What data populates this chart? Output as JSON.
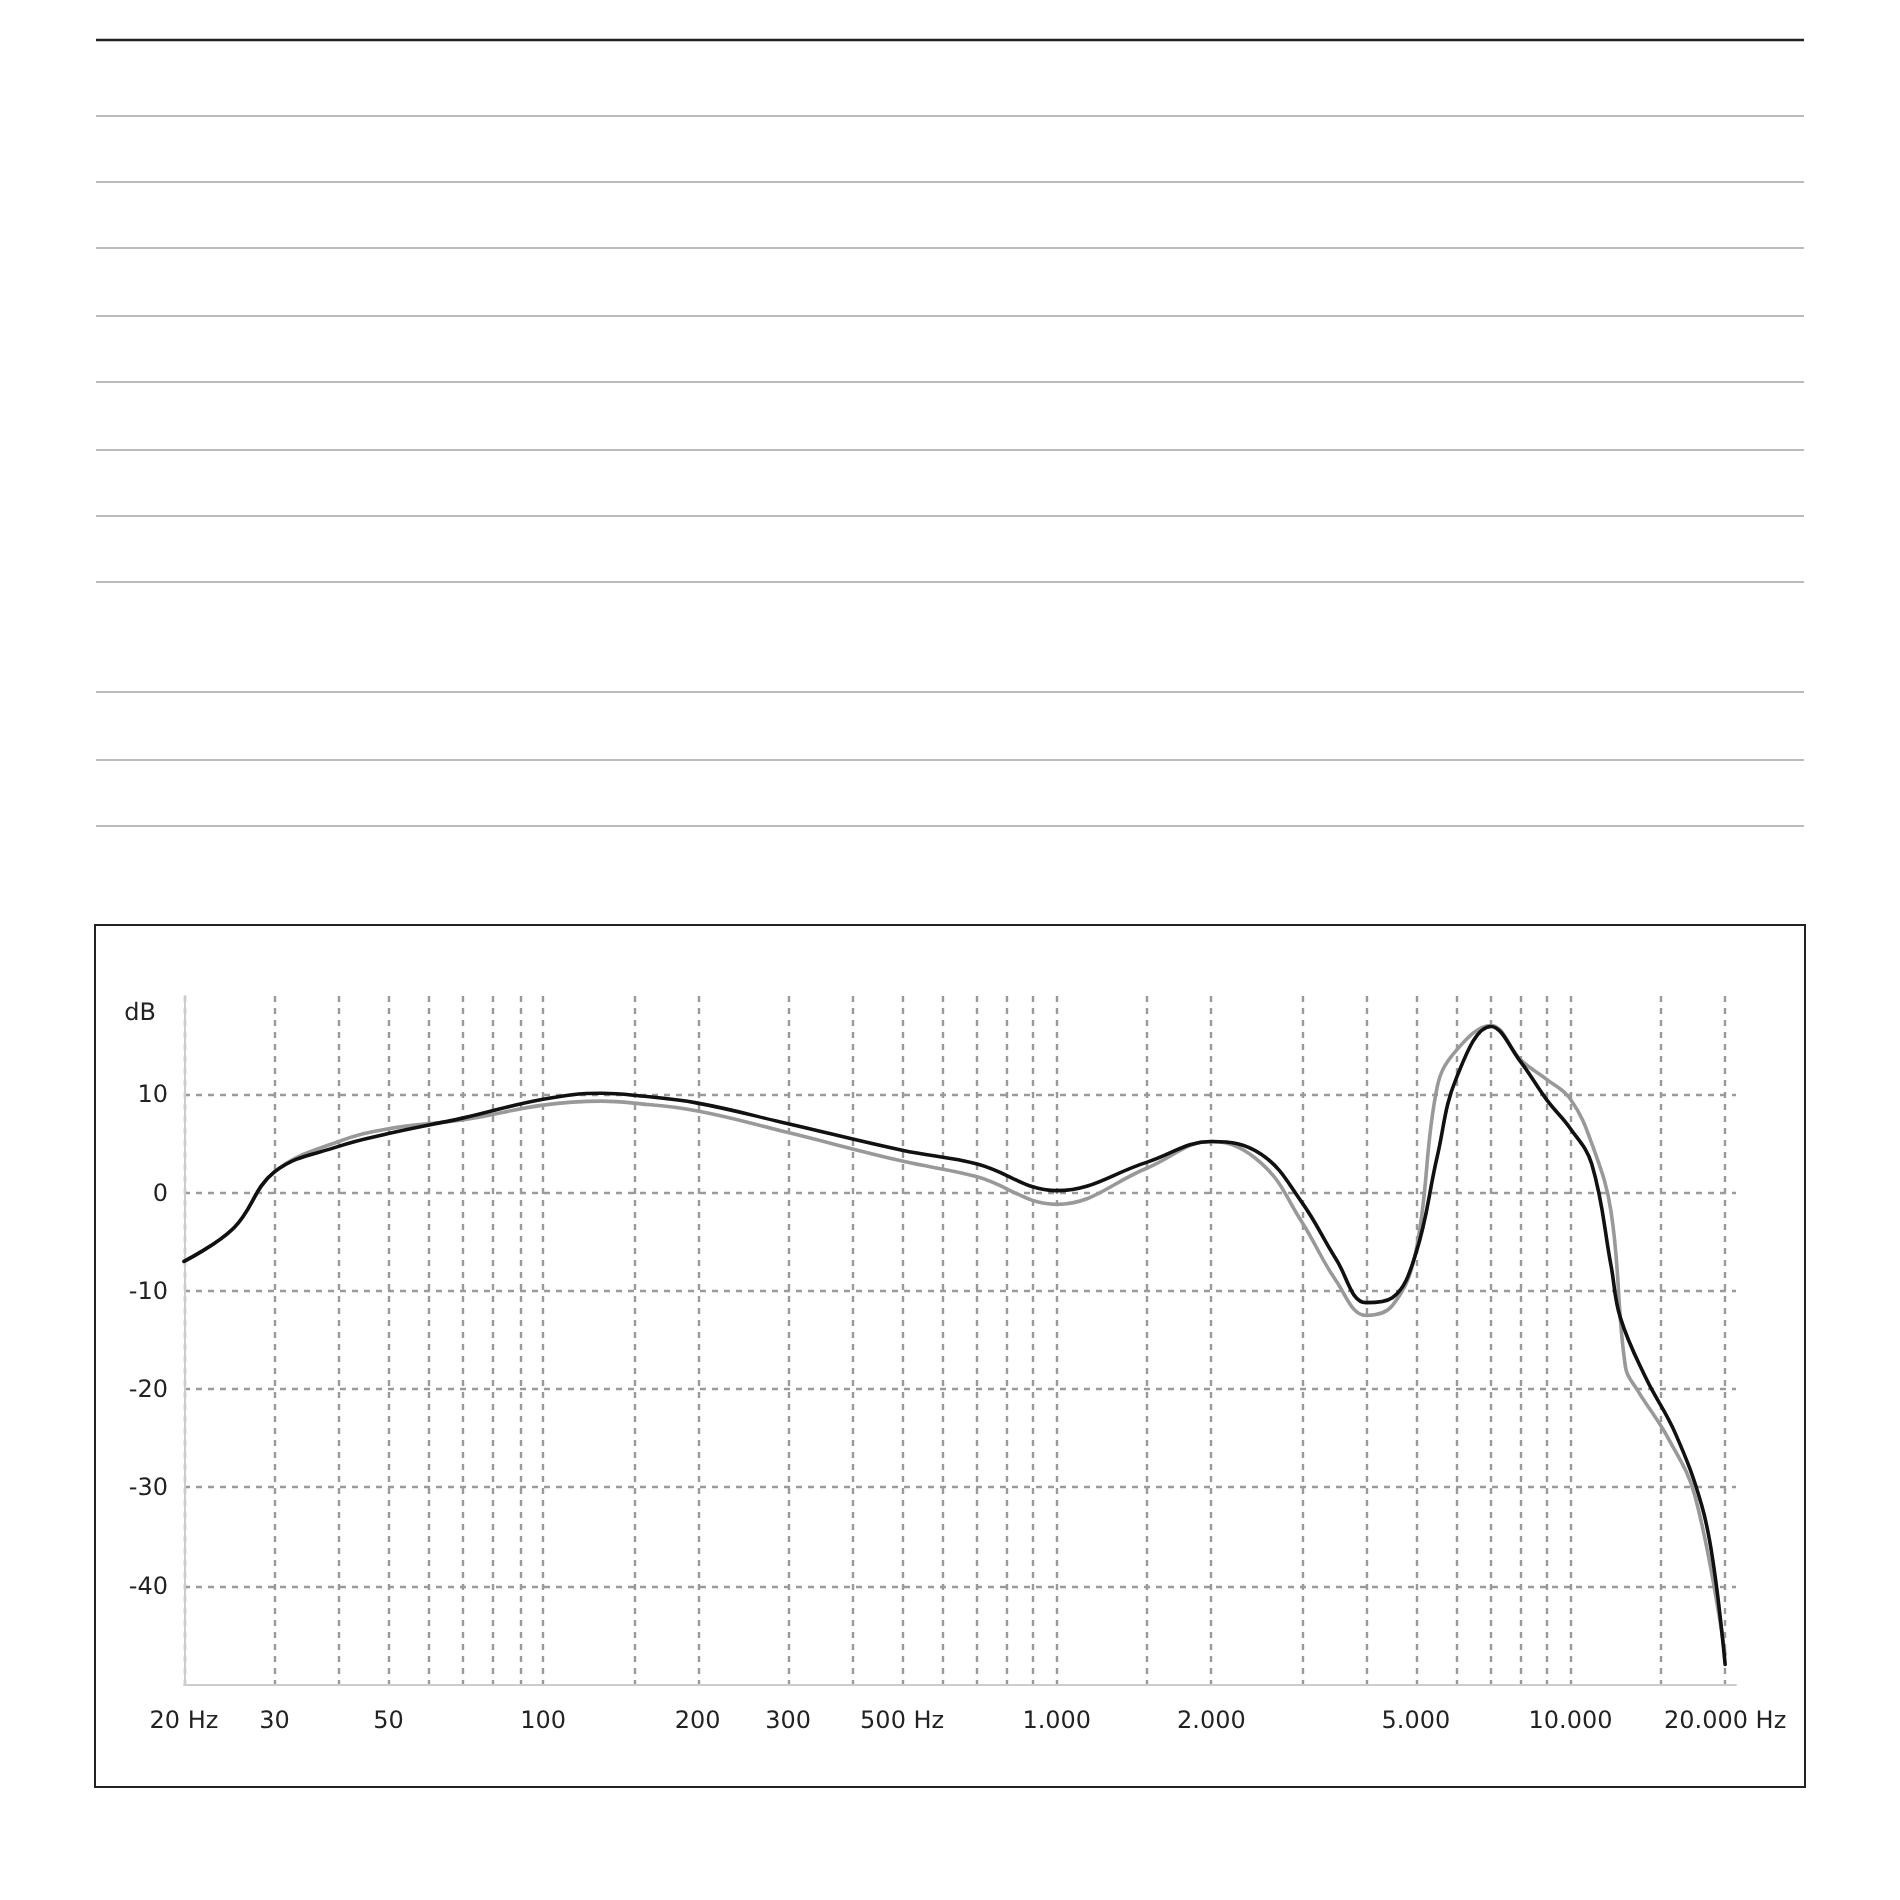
{
  "chart_data": {
    "type": "line",
    "ylabel": "dB",
    "xlim": [
      20,
      21000
    ],
    "log": "x",
    "ylim": [
      -50,
      20
    ],
    "yticks": [
      -40,
      -30,
      -20,
      -10,
      0,
      10
    ],
    "xticks": [
      {
        "value": 20,
        "label": "20 Hz"
      },
      30,
      {
        "value": 40,
        "label": null
      },
      50,
      {
        "value": 60,
        "label": null
      },
      {
        "value": 70,
        "label": null
      },
      {
        "value": 80,
        "label": null
      },
      {
        "value": 90,
        "label": null
      },
      100,
      {
        "value": 150,
        "label": null
      },
      200,
      300,
      {
        "value": 400,
        "label": null
      },
      {
        "value": 500,
        "label": "500 Hz"
      },
      {
        "value": 600,
        "label": null
      },
      {
        "value": 700,
        "label": null
      },
      {
        "value": 800,
        "label": null
      },
      {
        "value": 900,
        "label": null
      },
      {
        "value": 1000,
        "label": "1.000"
      },
      {
        "value": 1500,
        "label": null
      },
      {
        "value": 2000,
        "label": "2.000"
      },
      {
        "value": 3000,
        "label": null
      },
      {
        "value": 4000,
        "label": null
      },
      {
        "value": 5000,
        "label": "5.000"
      },
      {
        "value": 6000,
        "label": null
      },
      {
        "value": 7000,
        "label": null
      },
      {
        "value": 8000,
        "label": null
      },
      {
        "value": 9000,
        "label": null
      },
      {
        "value": 10000,
        "label": "10.000"
      },
      {
        "value": 15000,
        "label": null
      },
      {
        "value": 20000,
        "label": "20.000 Hz"
      }
    ],
    "grid": true,
    "marker": "none",
    "line_style": "solid",
    "series": [
      {
        "color": "#999999",
        "x": [
          20,
          25,
          30,
          40,
          50,
          70,
          100,
          130,
          150,
          200,
          300,
          500,
          700,
          1000,
          1500,
          2000,
          2500,
          3000,
          3500,
          4000,
          4500,
          5000,
          5500,
          6000,
          7000,
          8000,
          9000,
          10000,
          11000,
          12000,
          12800,
          13500,
          15500,
          17500,
          20000
        ],
        "values": [
          -7,
          -3.6,
          2.1,
          5.2,
          6.5,
          7.4,
          8.9,
          9.3,
          9.1,
          8.3,
          6.1,
          3.2,
          1.6,
          -1.2,
          2.5,
          5.2,
          3.0,
          -3.0,
          -9.0,
          -12.5,
          -11.5,
          -6.0,
          10.7,
          14.5,
          17.0,
          13.5,
          11.5,
          9.5,
          5.0,
          -2.0,
          -17.8,
          -20.1,
          -25.0,
          -31.0,
          -47.0
        ]
      },
      {
        "color": "#111111",
        "x": [
          20,
          25,
          30,
          40,
          50,
          70,
          100,
          130,
          150,
          200,
          300,
          500,
          700,
          1000,
          1500,
          2000,
          2500,
          3000,
          3500,
          4000,
          4500,
          5000,
          5500,
          6000,
          7000,
          8000,
          9000,
          10000,
          11000,
          12000,
          12500,
          14000,
          16000,
          18000,
          19000,
          20000
        ],
        "values": [
          -7,
          -3.6,
          2.1,
          4.7,
          6.0,
          7.6,
          9.5,
          10.1,
          9.9,
          9.1,
          7.0,
          4.3,
          2.9,
          0.2,
          3.1,
          5.2,
          3.9,
          -1.0,
          -6.8,
          -11.2,
          -10.7,
          -6.2,
          3.6,
          11.7,
          16.9,
          13.3,
          9.4,
          6.5,
          2.9,
          -7.5,
          -12.7,
          -18.8,
          -24.5,
          -31.8,
          -38,
          -48
        ]
      }
    ]
  }
}
